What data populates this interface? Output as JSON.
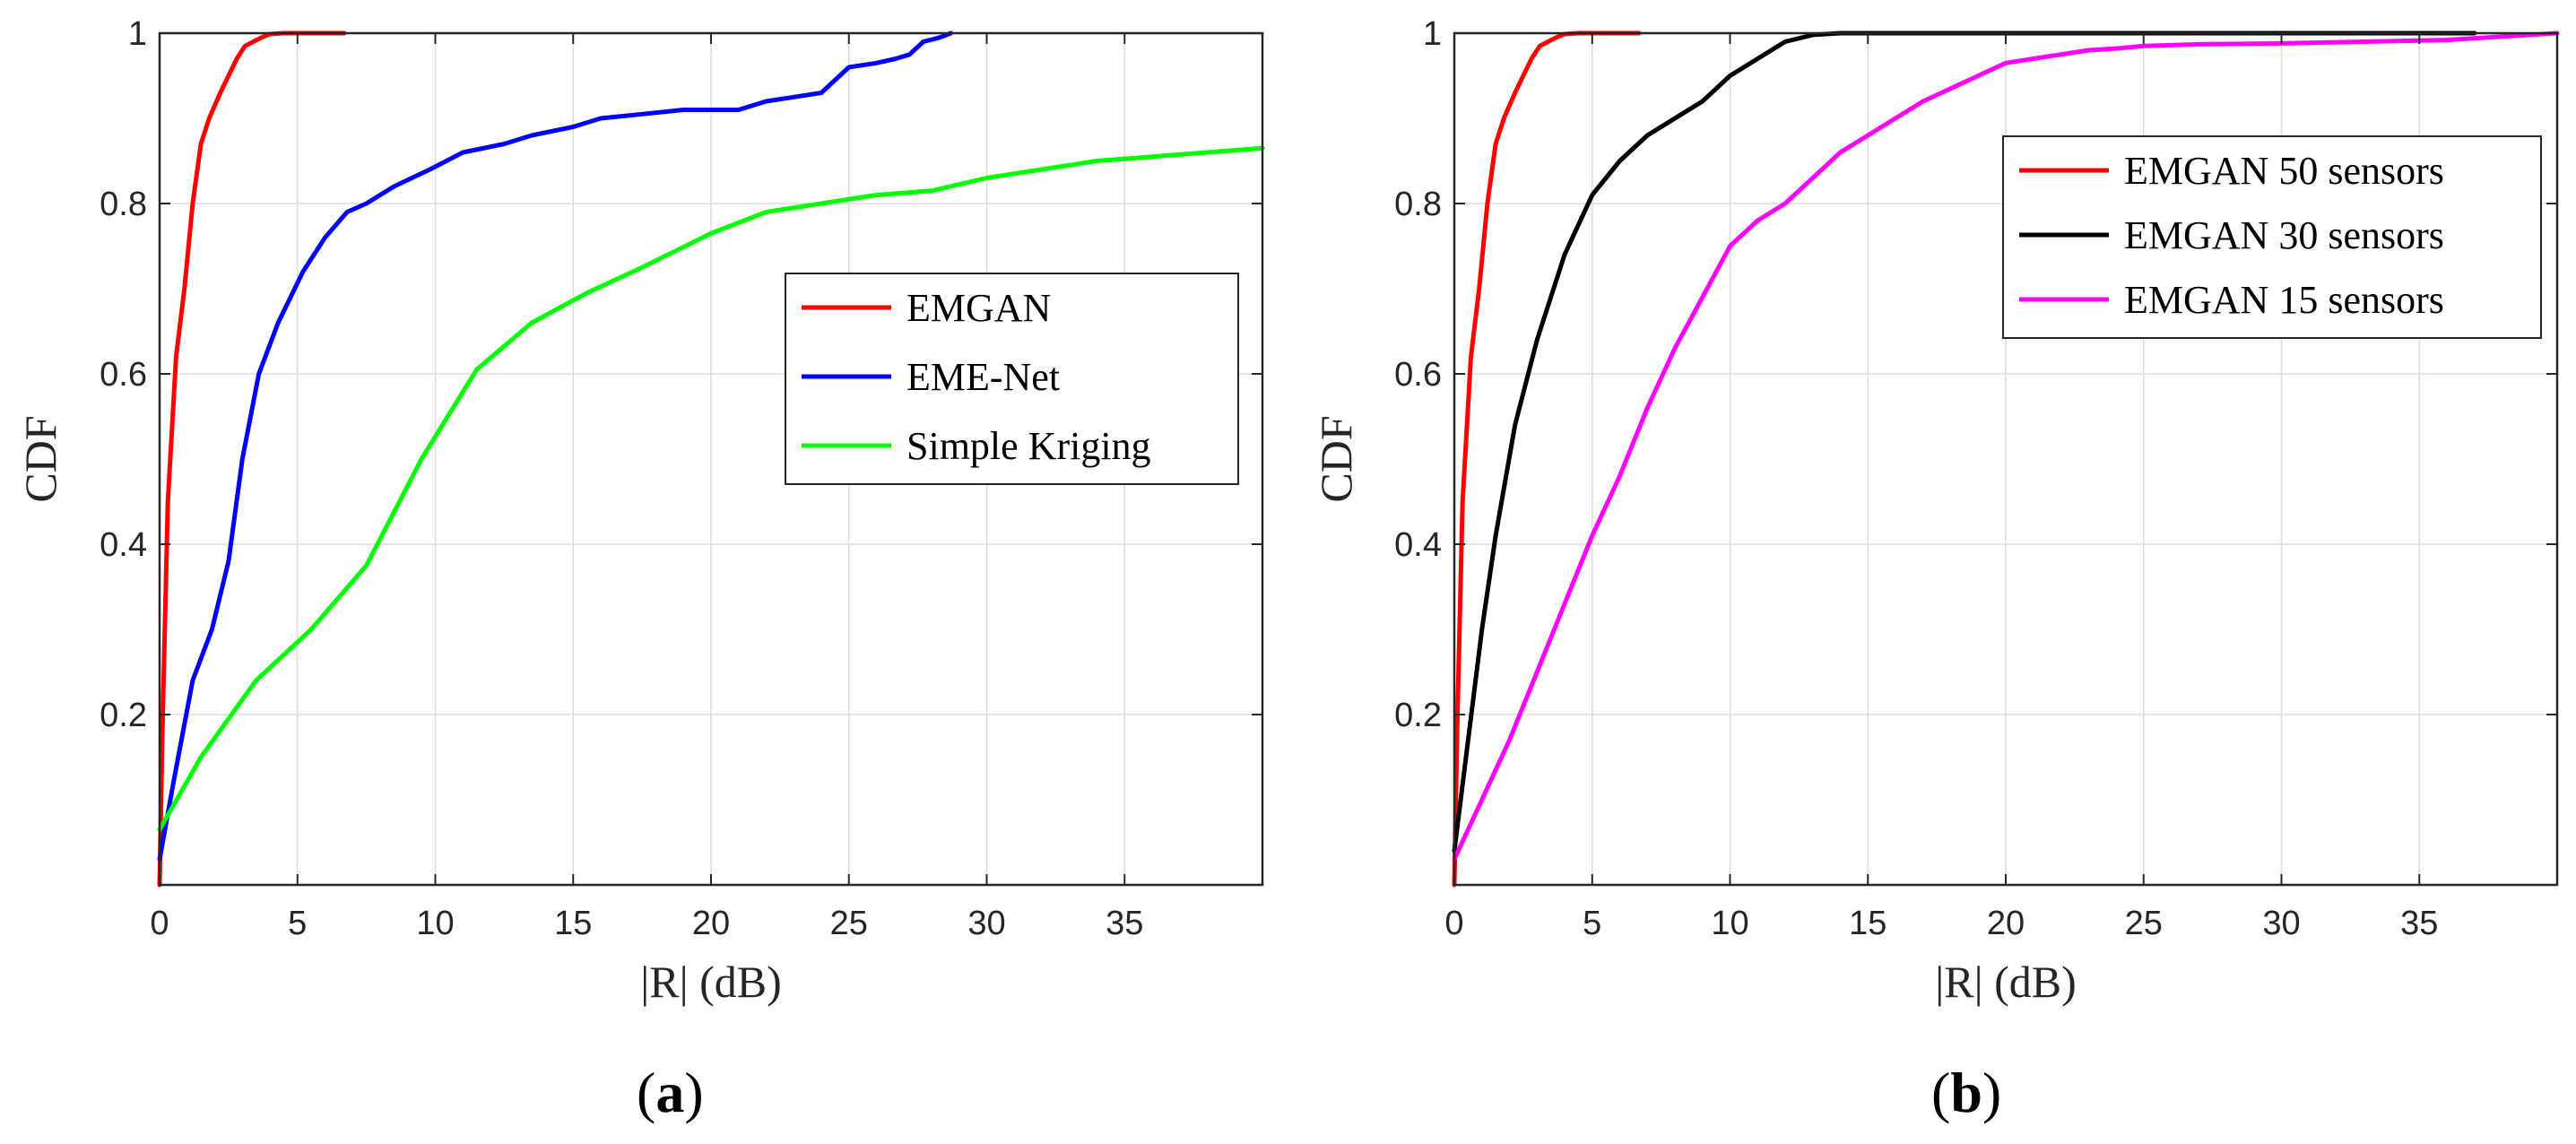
{
  "chart_data": [
    {
      "type": "line",
      "panel_label": "(a)",
      "panel_prefix": "(",
      "panel_letter": "a",
      "panel_suffix": ")",
      "xlabel": "|R| (dB)",
      "ylabel": "CDF",
      "xlim": [
        0,
        40
      ],
      "ylim": [
        0,
        1
      ],
      "xticks": [
        0,
        5,
        10,
        15,
        20,
        25,
        30,
        35
      ],
      "yticks": [
        0.2,
        0.4,
        0.6,
        0.8,
        1
      ],
      "ytick_labels": [
        "0.2",
        "0.4",
        "0.6",
        "0.8",
        "1"
      ],
      "grid": true,
      "legend_position": "right",
      "series": [
        {
          "name": "EMGAN",
          "color": "#ff0000",
          "x": [
            0,
            0.1,
            0.3,
            0.6,
            0.9,
            1.2,
            1.5,
            1.8,
            2.2,
            2.5,
            2.8,
            3.1,
            3.4,
            3.7,
            4.0,
            4.5,
            5.0,
            6.7
          ],
          "y": [
            0.0,
            0.18,
            0.45,
            0.62,
            0.7,
            0.8,
            0.87,
            0.9,
            0.93,
            0.95,
            0.97,
            0.985,
            0.99,
            0.995,
            0.999,
            1.0,
            1.0,
            1.0
          ]
        },
        {
          "name": "EME-Net",
          "color": "#0000ff",
          "x": [
            0,
            0.5,
            1.2,
            1.9,
            2.5,
            3.0,
            3.6,
            4.3,
            5.2,
            6.0,
            6.8,
            7.5,
            8.5,
            9.8,
            11.0,
            12.5,
            13.5,
            15.0,
            16.0,
            17.5,
            19.0,
            21.0,
            22.0,
            23.0,
            24.0,
            25.0,
            26.0,
            26.7,
            27.2,
            27.7,
            28.3,
            28.7
          ],
          "y": [
            0.03,
            0.12,
            0.24,
            0.3,
            0.38,
            0.5,
            0.6,
            0.66,
            0.72,
            0.76,
            0.79,
            0.8,
            0.82,
            0.84,
            0.86,
            0.87,
            0.88,
            0.89,
            0.9,
            0.905,
            0.91,
            0.91,
            0.92,
            0.925,
            0.93,
            0.96,
            0.965,
            0.97,
            0.975,
            0.99,
            0.995,
            1.0
          ]
        },
        {
          "name": "Simple Kriging",
          "color": "#00ff00",
          "x": [
            0,
            1.5,
            3.5,
            5.5,
            7.5,
            9.5,
            11.5,
            13.5,
            15.5,
            17.5,
            20.0,
            22.0,
            24.0,
            26.0,
            28.0,
            30.0,
            32.0,
            34.0,
            36.0,
            38.0,
            40.0
          ],
          "y": [
            0.065,
            0.15,
            0.24,
            0.3,
            0.375,
            0.5,
            0.605,
            0.66,
            0.695,
            0.725,
            0.765,
            0.79,
            0.8,
            0.81,
            0.815,
            0.83,
            0.84,
            0.85,
            0.855,
            0.86,
            0.865
          ]
        }
      ]
    },
    {
      "type": "line",
      "panel_label": "(b)",
      "panel_prefix": "(",
      "panel_letter": "b",
      "panel_suffix": ")",
      "xlabel": "|R| (dB)",
      "ylabel": "CDF",
      "xlim": [
        0,
        40
      ],
      "ylim": [
        0,
        1
      ],
      "xticks": [
        0,
        5,
        10,
        15,
        20,
        25,
        30,
        35
      ],
      "yticks": [
        0.2,
        0.4,
        0.6,
        0.8,
        1
      ],
      "ytick_labels": [
        "0.2",
        "0.4",
        "0.6",
        "0.8",
        "1"
      ],
      "grid": true,
      "legend_position": "top-right",
      "series": [
        {
          "name": "EMGAN 50 sensors",
          "color": "#ff0000",
          "x": [
            0,
            0.1,
            0.3,
            0.6,
            0.9,
            1.2,
            1.5,
            1.8,
            2.2,
            2.5,
            2.8,
            3.1,
            3.4,
            3.7,
            4.0,
            4.5,
            5.0,
            6.7
          ],
          "y": [
            0.0,
            0.18,
            0.45,
            0.62,
            0.7,
            0.8,
            0.87,
            0.9,
            0.93,
            0.95,
            0.97,
            0.985,
            0.99,
            0.995,
            0.999,
            1.0,
            1.0,
            1.0
          ]
        },
        {
          "name": "EMGAN 30 sensors",
          "color": "#000000",
          "x": [
            0,
            0.5,
            1.0,
            1.5,
            2.2,
            3.0,
            4.0,
            5.0,
            6.0,
            7.0,
            8.0,
            9.0,
            10.0,
            11.0,
            12.0,
            13.0,
            14.0,
            20.0,
            30.0,
            37.0
          ],
          "y": [
            0.04,
            0.17,
            0.3,
            0.41,
            0.54,
            0.64,
            0.74,
            0.81,
            0.85,
            0.88,
            0.9,
            0.92,
            0.95,
            0.97,
            0.99,
            0.998,
            1.0,
            1.0,
            1.0,
            1.0
          ]
        },
        {
          "name": "EMGAN 15 sensors",
          "color": "#ff00ff",
          "x": [
            0,
            1,
            2,
            3,
            4,
            5,
            6,
            7,
            8,
            9,
            10,
            11,
            12,
            13,
            14,
            15,
            16,
            17,
            18,
            19,
            20,
            21,
            22,
            23,
            24,
            25,
            27,
            30,
            33,
            36,
            40
          ],
          "y": [
            0.03,
            0.1,
            0.17,
            0.25,
            0.33,
            0.41,
            0.48,
            0.56,
            0.63,
            0.69,
            0.75,
            0.78,
            0.8,
            0.83,
            0.86,
            0.88,
            0.9,
            0.92,
            0.935,
            0.95,
            0.965,
            0.97,
            0.975,
            0.98,
            0.982,
            0.985,
            0.987,
            0.988,
            0.99,
            0.992,
            1.0
          ]
        }
      ]
    }
  ]
}
